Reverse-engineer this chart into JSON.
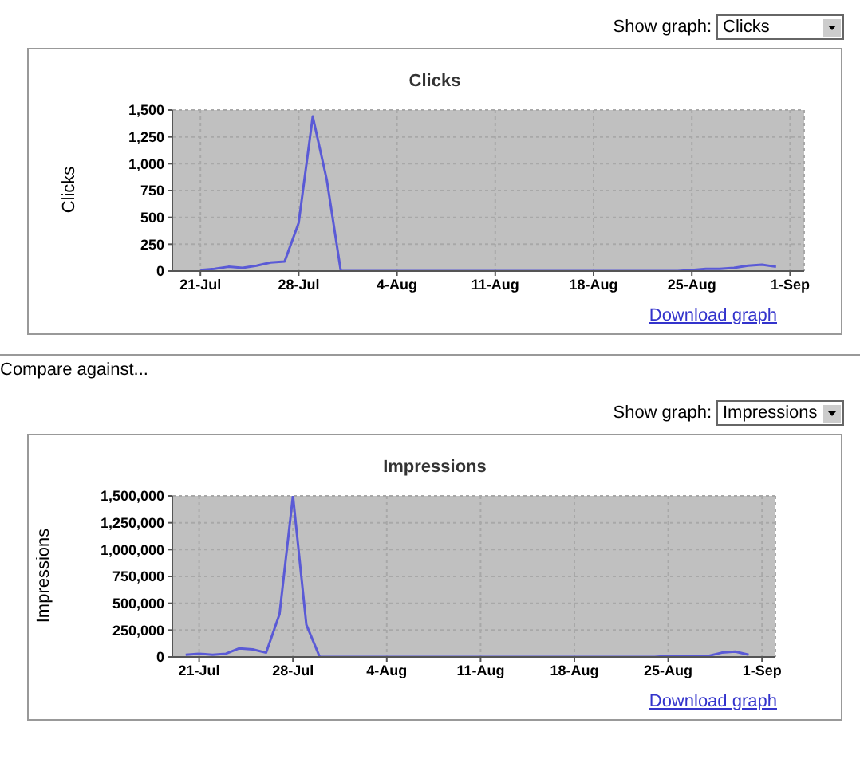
{
  "chart_data": [
    {
      "type": "line",
      "title": "Clicks",
      "ylabel": "Clicks",
      "annotations": [
        "Show graph:",
        "Clicks",
        "Download graph",
        "Compare against..."
      ],
      "x": [
        "--07-21",
        "--07-22",
        "--07-23",
        "--07-24",
        "--07-25",
        "--07-26",
        "--07-27",
        "--07-28",
        "--07-29",
        "--07-30",
        "--07-31",
        "--08-01",
        "--08-02",
        "--08-03",
        "--08-04",
        "--08-05",
        "--08-06",
        "--08-07",
        "--08-08",
        "--08-09",
        "--08-10",
        "--08-11",
        "--08-12",
        "--08-13",
        "--08-14",
        "--08-15",
        "--08-16",
        "--08-17",
        "--08-18",
        "--08-19",
        "--08-20",
        "--08-21",
        "--08-22",
        "--08-23",
        "--08-24",
        "--08-25",
        "--08-26",
        "--08-27",
        "--08-28",
        "--08-29",
        "--08-30",
        "--08-31"
      ],
      "series": [
        {
          "color": "#5a5ad6",
          "values": [
            10,
            20,
            40,
            30,
            50,
            80,
            90,
            450,
            1440,
            850,
            0,
            0,
            0,
            0,
            0,
            0,
            0,
            0,
            0,
            0,
            0,
            0,
            0,
            0,
            0,
            0,
            0,
            0,
            0,
            0,
            0,
            0,
            0,
            0,
            0,
            10,
            20,
            20,
            30,
            50,
            60,
            40
          ]
        }
      ],
      "xlim": [
        "--07-19",
        "--09-02"
      ],
      "xticks": [
        {
          "value": "--07-21",
          "label": "21-Jul"
        },
        {
          "value": "--07-28",
          "label": "28-Jul"
        },
        {
          "value": "--08-04",
          "label": "4-Aug"
        },
        {
          "value": "--08-11",
          "label": "11-Aug"
        },
        {
          "value": "--08-18",
          "label": "18-Aug"
        },
        {
          "value": "--08-25",
          "label": "25-Aug"
        },
        {
          "value": "--09-01",
          "label": "1-Sep"
        }
      ],
      "ylim": [
        0,
        1500
      ],
      "yticks": [
        {
          "value": 0,
          "label": "0"
        },
        {
          "value": 250,
          "label": "250"
        },
        {
          "value": 500,
          "label": "500"
        },
        {
          "value": 750,
          "label": "750"
        },
        {
          "value": 1000,
          "label": "1,000"
        },
        {
          "value": 1250,
          "label": "1,250"
        },
        {
          "value": 1500,
          "label": "1,500"
        }
      ],
      "grid": true,
      "legend": false,
      "marker": "none",
      "line_style": "solid"
    },
    {
      "type": "line",
      "title": "Impressions",
      "ylabel": "Impressions",
      "annotations": [
        "Show graph:",
        "Impressions",
        "Download graph"
      ],
      "x": [
        "--07-20",
        "--07-21",
        "--07-22",
        "--07-23",
        "--07-24",
        "--07-25",
        "--07-26",
        "--07-27",
        "--07-28",
        "--07-29",
        "--07-30",
        "--07-31",
        "--08-01",
        "--08-02",
        "--08-03",
        "--08-04",
        "--08-05",
        "--08-06",
        "--08-07",
        "--08-08",
        "--08-09",
        "--08-10",
        "--08-11",
        "--08-12",
        "--08-13",
        "--08-14",
        "--08-15",
        "--08-16",
        "--08-17",
        "--08-18",
        "--08-19",
        "--08-20",
        "--08-21",
        "--08-22",
        "--08-23",
        "--08-24",
        "--08-25",
        "--08-26",
        "--08-27",
        "--08-28",
        "--08-29",
        "--08-30",
        "--08-31"
      ],
      "series": [
        {
          "color": "#5a5ad6",
          "values": [
            20000,
            30000,
            20000,
            30000,
            80000,
            70000,
            40000,
            400000,
            1500000,
            300000,
            0,
            0,
            0,
            0,
            0,
            0,
            0,
            0,
            0,
            0,
            0,
            0,
            0,
            0,
            0,
            0,
            0,
            0,
            0,
            0,
            0,
            0,
            0,
            0,
            0,
            0,
            10000,
            10000,
            10000,
            10000,
            40000,
            50000,
            20000
          ]
        }
      ],
      "xlim": [
        "--07-19",
        "--09-02"
      ],
      "xticks": [
        {
          "value": "--07-21",
          "label": "21-Jul"
        },
        {
          "value": "--07-28",
          "label": "28-Jul"
        },
        {
          "value": "--08-04",
          "label": "4-Aug"
        },
        {
          "value": "--08-11",
          "label": "11-Aug"
        },
        {
          "value": "--08-18",
          "label": "18-Aug"
        },
        {
          "value": "--08-25",
          "label": "25-Aug"
        },
        {
          "value": "--09-01",
          "label": "1-Sep"
        }
      ],
      "ylim": [
        0,
        1500000
      ],
      "yticks": [
        {
          "value": 0,
          "label": "0"
        },
        {
          "value": 250000,
          "label": "250,000"
        },
        {
          "value": 500000,
          "label": "500,000"
        },
        {
          "value": 750000,
          "label": "750,000"
        },
        {
          "value": 1000000,
          "label": "1,000,000"
        },
        {
          "value": 1250000,
          "label": "1,250,000"
        },
        {
          "value": 1500000,
          "label": "1,500,000"
        }
      ],
      "grid": true,
      "legend": false,
      "marker": "none",
      "line_style": "solid"
    }
  ]
}
